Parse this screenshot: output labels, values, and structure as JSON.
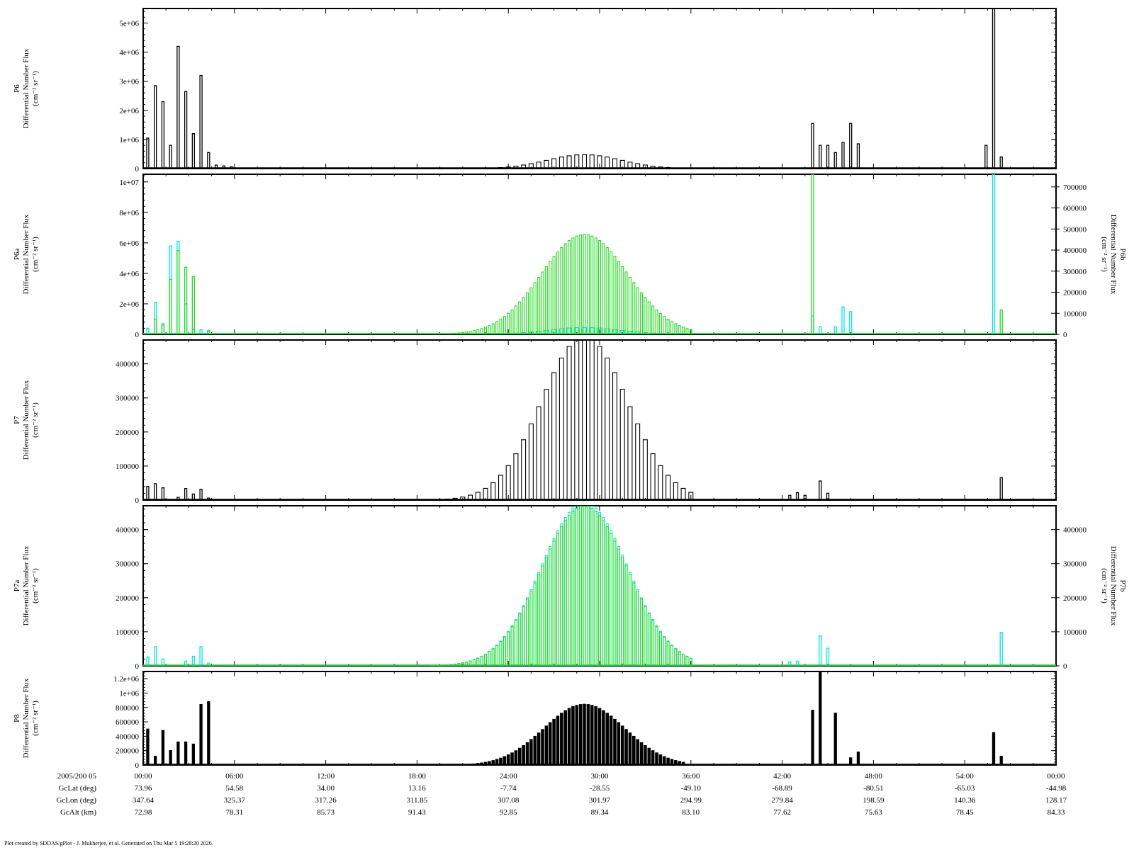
{
  "footer": "Plot created by SDDAS/gPlot - J. Mukherjee, et al.  Generated on Thu Mar  5 19:28:20 2026.",
  "colors": {
    "axis": "#000000",
    "primary": "#000000",
    "cyan": "#00e5ee",
    "green": "#22dd22"
  },
  "time_axis": {
    "date_label": "2005/200 05",
    "ticks": [
      "00:00",
      "06:00",
      "12:00",
      "18:00",
      "24:00",
      "30:00",
      "36:00",
      "42:00",
      "48:00",
      "54:00",
      "00:00"
    ],
    "rows": [
      {
        "label": "GcLat (deg)",
        "values": [
          "73.96",
          "54.58",
          "34.00",
          "13.16",
          "-7.74",
          "-28.55",
          "-49.10",
          "-68.89",
          "-80.51",
          "-65.03",
          "-44.98"
        ]
      },
      {
        "label": "GcLon (deg)",
        "values": [
          "347.64",
          "325.37",
          "317.26",
          "311.85",
          "307.08",
          "301.97",
          "294.99",
          "279.84",
          "198.59",
          "140.36",
          "128.17"
        ]
      },
      {
        "label": "GcAlt (km)",
        "values": [
          "72.98",
          "78.31",
          "85.73",
          "91.43",
          "92.85",
          "89.34",
          "83.10",
          "77.62",
          "75.63",
          "78.45",
          "84.33"
        ]
      }
    ]
  },
  "chart_data": [
    {
      "type": "line",
      "panel": "P6",
      "ylabel_lines": [
        "P6",
        "Differential Number Flux",
        "(cm⁻² sr⁻¹)"
      ],
      "ylim": [
        0,
        5500000
      ],
      "y_ticks": [
        0,
        1000000,
        2000000,
        3000000,
        4000000,
        5000000
      ],
      "y_tick_labels": [
        "0",
        "1e+06",
        "2e+06",
        "3e+06",
        "4e+06",
        "5e+06"
      ],
      "x_unit": "minutes",
      "xlim": [
        0,
        60
      ],
      "series": [
        {
          "color": "#000000",
          "spikes": [
            [
              0.3,
              1050000
            ],
            [
              0.8,
              2850000
            ],
            [
              1.3,
              2300000
            ],
            [
              1.8,
              800000
            ],
            [
              2.3,
              4200000
            ],
            [
              2.8,
              2650000
            ],
            [
              3.3,
              1200000
            ],
            [
              3.8,
              3200000
            ],
            [
              4.3,
              550000
            ],
            [
              4.8,
              120000
            ],
            [
              5.3,
              90000
            ],
            [
              5.8,
              60000
            ],
            [
              44.0,
              1550000
            ],
            [
              44.5,
              800000
            ],
            [
              45.0,
              800000
            ],
            [
              45.5,
              550000
            ],
            [
              46.0,
              900000
            ],
            [
              46.5,
              1550000
            ],
            [
              47.0,
              850000
            ],
            [
              55.4,
              800000
            ],
            [
              55.9,
              5500000
            ],
            [
              56.4,
              400000
            ]
          ],
          "hump": {
            "start": 20.5,
            "end": 35.0,
            "peak_x": 29.0,
            "peak_y": 480000,
            "step": 0.5
          }
        }
      ]
    },
    {
      "type": "line",
      "panel": "P6a / P6b",
      "ylabel_lines": [
        "P6a",
        "Differential Number Flux",
        "(cm⁻² sr⁻¹)"
      ],
      "ylabel_right_lines": [
        "P6b",
        "Differential Number Flux",
        "(cm⁻² sr⁻¹)"
      ],
      "ylim": [
        0,
        10500000
      ],
      "y_ticks": [
        0,
        2000000,
        4000000,
        6000000,
        8000000,
        10000000
      ],
      "y_tick_labels": [
        "0",
        "2e+06",
        "4e+06",
        "6e+06",
        "8e+06",
        "1e+07"
      ],
      "y2lim": [
        0,
        760000
      ],
      "y2_ticks": [
        0,
        100000,
        200000,
        300000,
        400000,
        500000,
        600000,
        700000
      ],
      "y2_tick_labels": [
        "0",
        "100000",
        "200000",
        "300000",
        "400000",
        "500000",
        "600000",
        "700000"
      ],
      "xlim": [
        0,
        60
      ],
      "series": [
        {
          "color": "#00e5ee",
          "spikes": [
            [
              0.3,
              400000
            ],
            [
              0.8,
              2100000
            ],
            [
              1.3,
              700000
            ],
            [
              1.8,
              5800000
            ],
            [
              2.3,
              6100000
            ],
            [
              2.8,
              2000000
            ],
            [
              3.3,
              300000
            ],
            [
              3.8,
              300000
            ],
            [
              4.3,
              250000
            ],
            [
              44.0,
              1200000
            ],
            [
              44.5,
              500000
            ],
            [
              45.5,
              500000
            ],
            [
              46.0,
              1800000
            ],
            [
              46.5,
              1500000
            ],
            [
              55.9,
              10500000
            ]
          ],
          "hump": {
            "start": 20.5,
            "end": 35.0,
            "peak_x": 29.0,
            "peak_y": 450000,
            "step": 0.5
          }
        },
        {
          "color": "#22dd22",
          "spikes": [
            [
              0.8,
              1000000
            ],
            [
              1.3,
              600000
            ],
            [
              1.8,
              3600000
            ],
            [
              2.3,
              5500000
            ],
            [
              2.8,
              4400000
            ],
            [
              3.3,
              3800000
            ],
            [
              4.3,
              200000
            ],
            [
              44.0,
              10500000
            ],
            [
              56.4,
              1600000
            ]
          ],
          "hump": {
            "start": 19.0,
            "end": 36.0,
            "peak_x": 29.0,
            "peak_y": 6550000,
            "step": 0.25
          }
        }
      ]
    },
    {
      "type": "line",
      "panel": "P7",
      "ylabel_lines": [
        "P7",
        "Differential Number Flux",
        "(cm⁻² sr⁻¹)"
      ],
      "ylim": [
        0,
        470000
      ],
      "y_ticks": [
        0,
        100000,
        200000,
        300000,
        400000
      ],
      "y_tick_labels": [
        "0",
        "100000",
        "200000",
        "300000",
        "400000"
      ],
      "xlim": [
        0,
        60
      ],
      "series": [
        {
          "color": "#000000",
          "spikes": [
            [
              0.3,
              40000
            ],
            [
              0.8,
              48000
            ],
            [
              1.3,
              36000
            ],
            [
              2.3,
              8000
            ],
            [
              2.8,
              34000
            ],
            [
              3.3,
              18000
            ],
            [
              3.8,
              32000
            ],
            [
              4.3,
              6000
            ],
            [
              42.5,
              14000
            ],
            [
              43.0,
              22000
            ],
            [
              43.5,
              14000
            ],
            [
              44.5,
              56000
            ],
            [
              45.0,
              20000
            ],
            [
              56.4,
              66000
            ]
          ],
          "hump": {
            "start": 19.0,
            "end": 36.0,
            "peak_x": 29.0,
            "peak_y": 480000,
            "step": 0.5
          }
        }
      ]
    },
    {
      "type": "line",
      "panel": "P7a / P7b",
      "ylabel_lines": [
        "P7a",
        "Differential Number Flux",
        "(cm⁻² sr⁻¹)"
      ],
      "ylabel_right_lines": [
        "P7b",
        "Differential Number Flux",
        "(cm⁻² sr⁻¹)"
      ],
      "ylim": [
        0,
        470000
      ],
      "y_ticks": [
        0,
        100000,
        200000,
        300000,
        400000
      ],
      "y_tick_labels": [
        "0",
        "100000",
        "200000",
        "300000",
        "400000"
      ],
      "y2lim": [
        0,
        470000
      ],
      "y2_ticks": [
        0,
        100000,
        200000,
        300000,
        400000
      ],
      "y2_tick_labels": [
        "0",
        "100000",
        "200000",
        "300000",
        "400000"
      ],
      "xlim": [
        0,
        60
      ],
      "series": [
        {
          "color": "#00e5ee",
          "spikes": [
            [
              0.3,
              26000
            ],
            [
              0.8,
              56000
            ],
            [
              1.3,
              20000
            ],
            [
              2.8,
              14000
            ],
            [
              3.3,
              28000
            ],
            [
              3.8,
              56000
            ],
            [
              4.3,
              8000
            ],
            [
              42.5,
              12000
            ],
            [
              43.0,
              14000
            ],
            [
              44.5,
              88000
            ],
            [
              45.0,
              52000
            ],
            [
              56.4,
              98000
            ]
          ],
          "hump": {
            "start": 19.0,
            "end": 36.0,
            "peak_x": 29.0,
            "peak_y": 480000,
            "step": 0.25
          }
        },
        {
          "color": "#22dd22",
          "spikes": [],
          "hump": {
            "start": 19.0,
            "end": 36.0,
            "peak_x": 29.0,
            "peak_y": 470000,
            "step": 0.25
          }
        }
      ]
    },
    {
      "type": "bar",
      "panel": "P8",
      "ylabel_lines": [
        "P8",
        "Differential Number Flux",
        "(cm⁻² sr⁻¹)"
      ],
      "ylim": [
        0,
        1300000
      ],
      "y_ticks": [
        0,
        200000,
        400000,
        600000,
        800000,
        1000000,
        1200000
      ],
      "y_tick_labels": [
        "0",
        "200000",
        "400000",
        "600000",
        "800000",
        "1e+06",
        "1.2e+06"
      ],
      "xlim": [
        0,
        60
      ],
      "series": [
        {
          "color": "#000000",
          "spikes": [
            [
              0.3,
              500000
            ],
            [
              0.8,
              120000
            ],
            [
              1.3,
              480000
            ],
            [
              1.8,
              200000
            ],
            [
              2.3,
              320000
            ],
            [
              2.8,
              320000
            ],
            [
              3.3,
              290000
            ],
            [
              3.8,
              840000
            ],
            [
              4.3,
              880000
            ],
            [
              44.0,
              760000
            ],
            [
              44.5,
              1300000
            ],
            [
              45.5,
              720000
            ],
            [
              46.5,
              100000
            ],
            [
              47.0,
              180000
            ],
            [
              55.9,
              450000
            ],
            [
              56.4,
              120000
            ]
          ],
          "hump": {
            "start": 19.5,
            "end": 35.5,
            "peak_x": 29.0,
            "peak_y": 850000,
            "step": 0.25
          }
        }
      ]
    }
  ]
}
